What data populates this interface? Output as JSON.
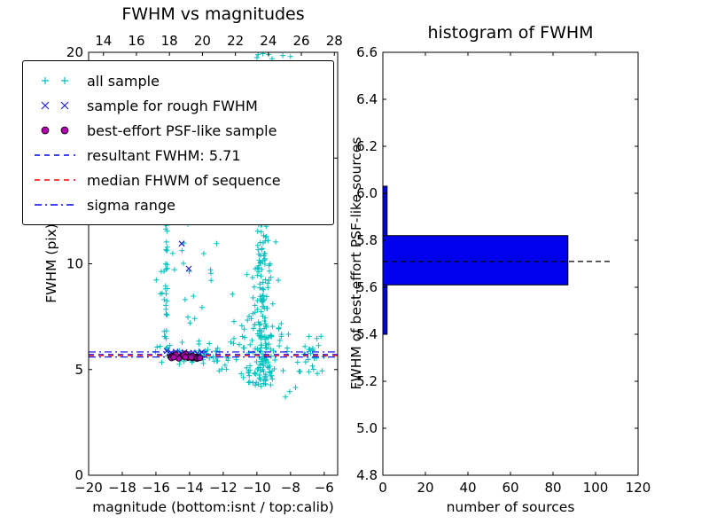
{
  "figure": {
    "background": "#ffffff"
  },
  "chart_data": [
    {
      "type": "scatter",
      "title": "FWHM vs magnitudes",
      "xlabel": "magnitude (bottom:isnt / top:calib)",
      "ylabel": "FWHM (pix)",
      "xlim": [
        -20,
        -5.2
      ],
      "xlim_top": [
        13.1,
        28.2
      ],
      "ylim": [
        0,
        20
      ],
      "x_ticks_bottom": [
        -20,
        -18,
        -16,
        -14,
        -12,
        -10,
        -8,
        -6
      ],
      "x_ticks_top": [
        14,
        16,
        18,
        20,
        22,
        24,
        26,
        28
      ],
      "y_ticks": [
        0,
        5,
        10,
        15,
        20
      ],
      "seed": 7,
      "series": [
        {
          "name": "all sample",
          "marker": "+",
          "color": "#00bfbf",
          "clusters": [
            {
              "n": 160,
              "xg": [
                -9.65,
                0.3
              ],
              "y": [
                4.3,
                12.6
              ],
              "pow": 1.15
            },
            {
              "n": 55,
              "xg": [
                -9.6,
                0.85
              ],
              "y": [
                4.1,
                7.2
              ]
            },
            {
              "n": 45,
              "x": [
                -12.6,
                -6.4
              ],
              "y": [
                4.7,
                6.2
              ]
            },
            {
              "n": 40,
              "x": [
                -16.1,
                -12.1
              ],
              "y": [
                5.25,
                6.35
              ]
            },
            {
              "n": 26,
              "x": [
                -15.52,
                -15.32
              ],
              "y": [
                5.7,
                12.4
              ]
            },
            {
              "n": 26,
              "x": [
                -16.0,
                -12.3
              ],
              "y": [
                6.4,
                12.3
              ]
            },
            {
              "n": 22,
              "xg": [
                -9.6,
                0.45
              ],
              "y": [
                12.6,
                16.8
              ]
            },
            {
              "n": 10,
              "x": [
                -10.2,
                -8.3
              ],
              "y": [
                16.8,
                20.0
              ]
            },
            {
              "n": 14,
              "x": [
                -7.3,
                -6.0
              ],
              "y": [
                4.8,
                6.6
              ]
            },
            {
              "n": 8,
              "x": [
                -11.6,
                -10.4
              ],
              "y": [
                6.4,
                9.2
              ]
            }
          ],
          "points": [
            [
              -8.3,
              3.7
            ],
            [
              -8.05,
              3.95
            ],
            [
              -7.7,
              4.15
            ],
            [
              -9.3,
              19.9
            ],
            [
              -9.1,
              19.7
            ],
            [
              -8.6,
              19.3
            ],
            [
              -8.0,
              19.8
            ],
            [
              -10.0,
              19.75
            ]
          ]
        },
        {
          "name": "sample for rough FWHM",
          "marker": "x",
          "color": "#2222cc",
          "points": [
            [
              -15.35,
              5.88
            ],
            [
              -15.1,
              5.78
            ],
            [
              -14.82,
              5.84
            ],
            [
              -14.55,
              5.76
            ],
            [
              -14.3,
              5.82
            ],
            [
              -14.05,
              5.74
            ],
            [
              -13.8,
              5.8
            ],
            [
              -13.55,
              5.76
            ],
            [
              -13.28,
              5.83
            ],
            [
              -14.47,
              10.95
            ],
            [
              -14.05,
              9.77
            ]
          ]
        },
        {
          "name": "best-effort PSF-like sample",
          "marker": "o",
          "color": "#b000b0",
          "edge": "#000000",
          "clusters": [
            {
              "n": 30,
              "x": [
                -15.3,
                -13.35
              ],
              "yg": [
                5.6,
                0.055
              ]
            }
          ]
        }
      ],
      "lines": [
        {
          "name": "resultant FWHM",
          "y": 5.71,
          "style": "dashed",
          "color": "#0000ff"
        },
        {
          "name": "median FHWM of sequence",
          "y": 5.66,
          "style": "dashed",
          "color": "#ff0000"
        },
        {
          "name": "sigma range low",
          "y": 5.59,
          "style": "dashdot",
          "color": "#0000ff"
        },
        {
          "name": "sigma range high",
          "y": 5.83,
          "style": "dashdot",
          "color": "#0000ff"
        }
      ],
      "legend": [
        {
          "label": "all sample",
          "kind": "marker",
          "marker": "plus",
          "color": "#00bfbf"
        },
        {
          "label": "sample for rough FWHM",
          "kind": "marker",
          "marker": "x",
          "color": "#2222cc"
        },
        {
          "label": "best-effort PSF-like sample",
          "kind": "marker",
          "marker": "circle",
          "color": "#b000b0",
          "edge": "#000000"
        },
        {
          "label": "resultant FWHM: 5.71",
          "kind": "line",
          "dash": "dashed",
          "color": "#0000ff"
        },
        {
          "label": "median FHWM of sequence",
          "kind": "line",
          "dash": "dashed",
          "color": "#ff0000"
        },
        {
          "label": "sigma range",
          "kind": "line",
          "dash": "dashdot",
          "color": "#0000ff"
        }
      ]
    },
    {
      "type": "bar",
      "orientation": "horizontal",
      "title": "histogram of FWHM",
      "xlabel": "number of sources",
      "ylabel": "FWHM of best-effort PSF-like sources",
      "xlim": [
        0,
        120
      ],
      "ylim": [
        4.8,
        6.6
      ],
      "x_ticks": [
        0,
        20,
        40,
        60,
        80,
        100,
        120
      ],
      "y_ticks": [
        4.8,
        5.0,
        5.2,
        5.4,
        5.6,
        5.8,
        6.0,
        6.2,
        6.4,
        6.6
      ],
      "bin_edges": [
        5.4,
        5.61,
        5.82,
        6.03
      ],
      "counts": [
        2,
        87,
        2
      ],
      "bar_color": "#0000ee",
      "median_line": {
        "y": 5.71,
        "x_end": 107,
        "style": "dashed",
        "color": "#000000"
      }
    }
  ]
}
